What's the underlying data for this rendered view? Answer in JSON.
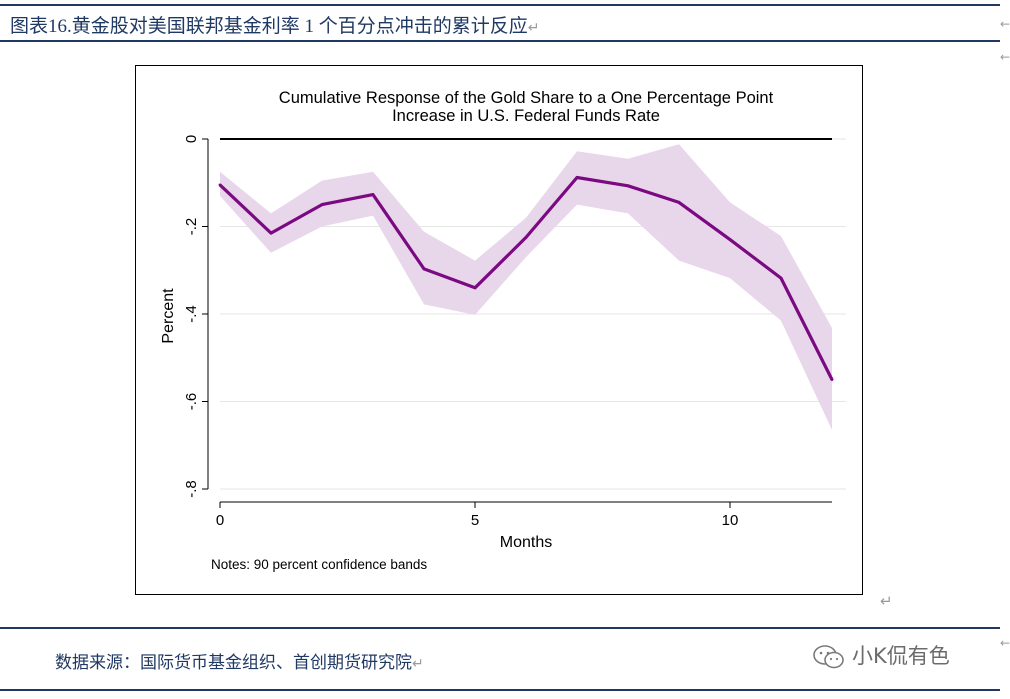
{
  "header": {
    "figure_title": "图表16.黄金股对美国联邦基金利率 1 个百分点冲击的累计反应"
  },
  "footer": {
    "source_text": "数据来源：国际货币基金组织、首创期货研究院",
    "watermark_text": "小K侃有色",
    "watermark_icon": "wechat-icon"
  },
  "symbols": {
    "return_mark": "↵",
    "edge_arrow": "←"
  },
  "colors": {
    "title_navy": "#1f3864",
    "line_purple": "#7b0a82",
    "band_fill": "#e8d6ea"
  },
  "chart_data": {
    "type": "line",
    "title": "Cumulative Response of the Gold Share to a One Percentage Point Increase in U.S. Federal Funds Rate",
    "title_lines": [
      "Cumulative Response of the Gold Share to a One Percentage Point",
      "Increase in U.S. Federal Funds Rate"
    ],
    "xlabel": "Months",
    "ylabel": "Percent",
    "note": "Notes: 90 percent confidence bands",
    "xlim": [
      0,
      12
    ],
    "ylim": [
      -0.8,
      0
    ],
    "x_ticks": [
      0,
      5,
      10
    ],
    "x_tick_labels": [
      "0",
      "5",
      "10"
    ],
    "y_ticks": [
      0,
      -0.2,
      -0.4,
      -0.6,
      -0.8
    ],
    "y_tick_labels": [
      "0",
      "-.2",
      "-.4",
      "-.6",
      "-.8"
    ],
    "grid": true,
    "zero_line": true,
    "x": [
      0,
      1,
      2,
      3,
      4,
      5,
      6,
      7,
      8,
      9,
      10,
      11,
      12
    ],
    "series": [
      {
        "values": [
          -0.105,
          -0.215,
          -0.15,
          -0.127,
          -0.297,
          -0.34,
          -0.225,
          -0.088,
          -0.107,
          -0.145,
          -0.23,
          -0.318,
          -0.55
        ],
        "lower": [
          -0.13,
          -0.26,
          -0.2,
          -0.175,
          -0.378,
          -0.402,
          -0.27,
          -0.15,
          -0.17,
          -0.278,
          -0.318,
          -0.415,
          -0.665
        ],
        "upper": [
          -0.075,
          -0.17,
          -0.095,
          -0.075,
          -0.212,
          -0.278,
          -0.18,
          -0.028,
          -0.045,
          -0.012,
          -0.145,
          -0.222,
          -0.432
        ]
      }
    ]
  }
}
